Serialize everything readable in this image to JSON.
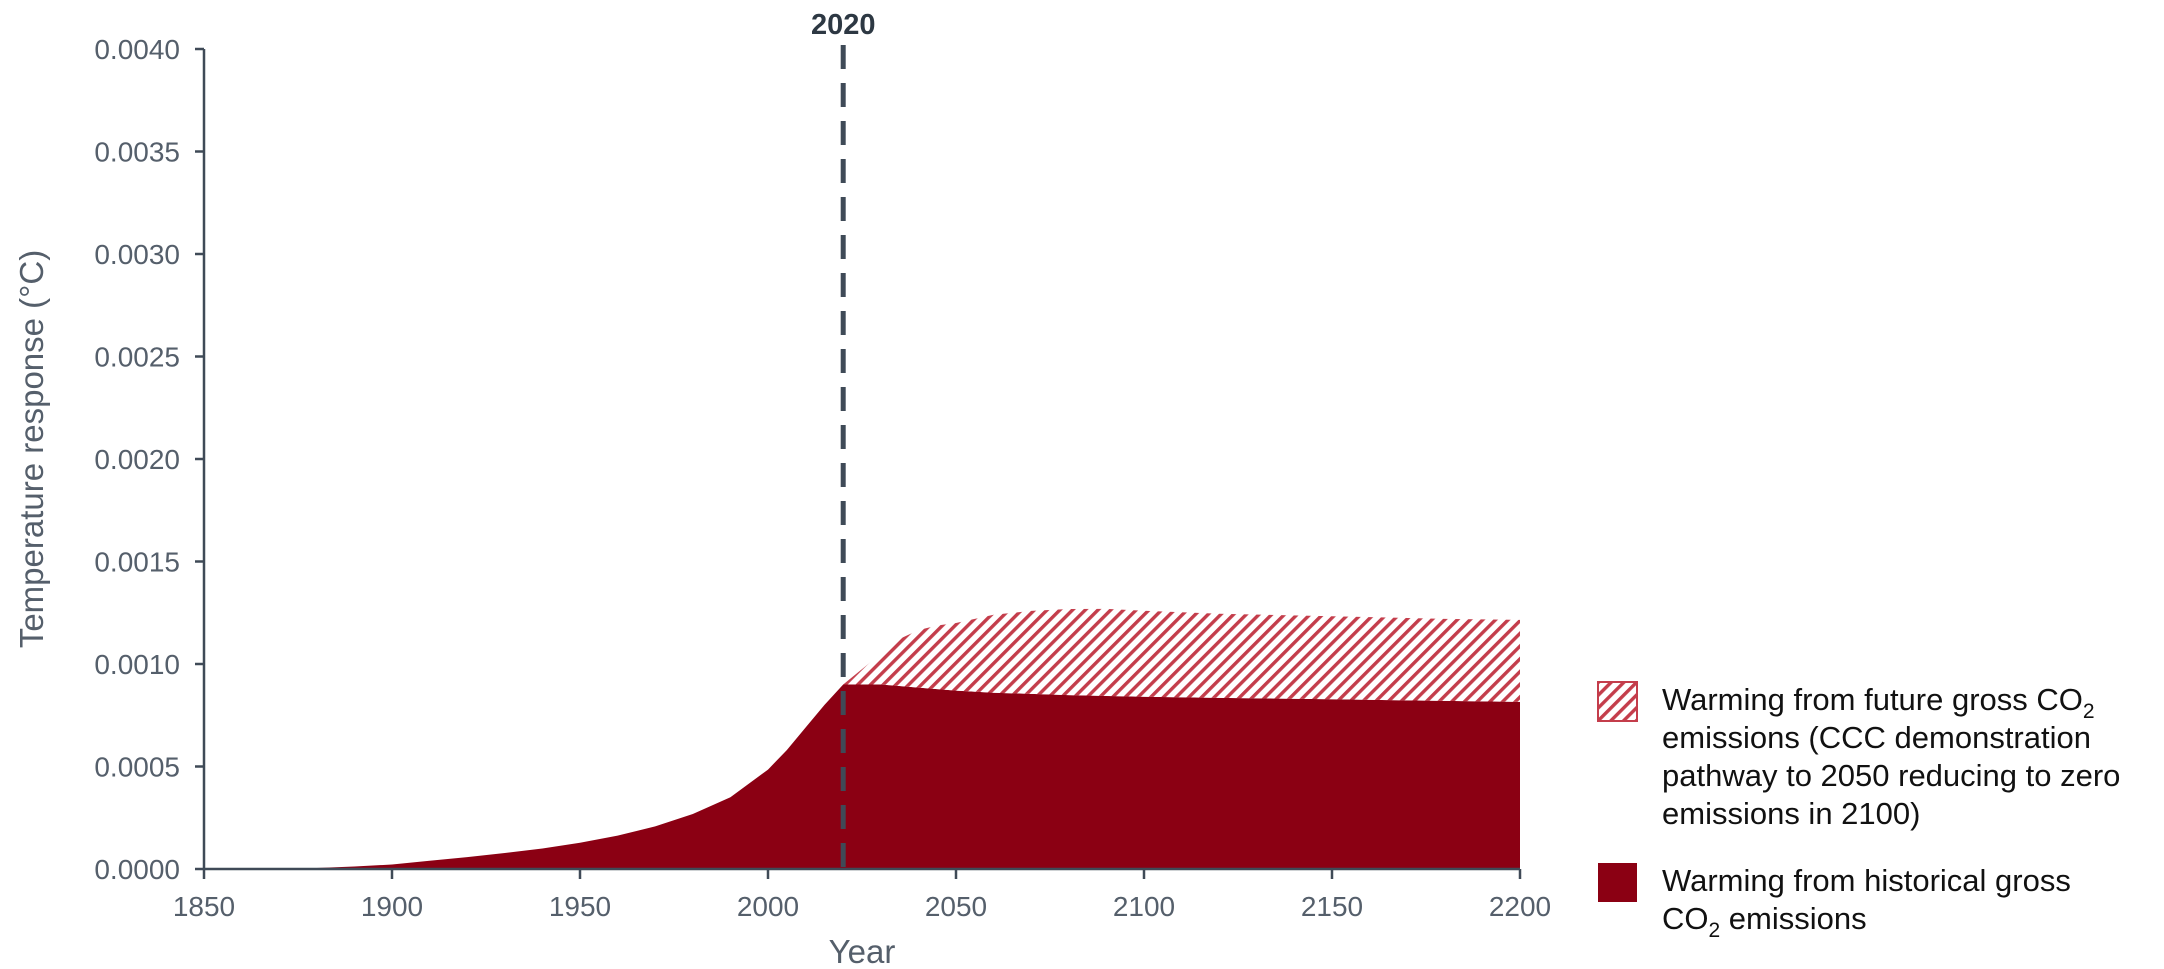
{
  "chart_data": {
    "type": "area",
    "xlabel": "Year",
    "ylabel": "Temperature response (°C)",
    "xlim": [
      1850,
      2200
    ],
    "ylim": [
      0,
      0.004
    ],
    "x_ticks": [
      1850,
      1900,
      1950,
      2000,
      2050,
      2100,
      2150,
      2200
    ],
    "y_ticks": [
      "0.0000",
      "0.0005",
      "0.0010",
      "0.0015",
      "0.0020",
      "0.0025",
      "0.0030",
      "0.0035",
      "0.0040"
    ],
    "y_tick_values": [
      0,
      0.0005,
      0.001,
      0.0015,
      0.002,
      0.0025,
      0.003,
      0.0035,
      0.004
    ],
    "stacked": true,
    "grid": false,
    "legend_position": "bottom-right",
    "marker": {
      "x": 2020,
      "label": "2020",
      "style": "dashed",
      "color": "#3f4a57"
    },
    "series": [
      {
        "legend_label_parts": [
          {
            "text": "Warming from historical gross CO",
            "sub": "2"
          },
          {
            "text": "emissions"
          }
        ],
        "legend_lines": [
          "Warming from historical gross",
          "CO₂ emissions"
        ],
        "fill": "solid",
        "color": "#8b0013",
        "x": [
          1850,
          1870,
          1880,
          1890,
          1900,
          1910,
          1920,
          1930,
          1940,
          1950,
          1960,
          1970,
          1980,
          1990,
          2000,
          2005,
          2010,
          2015,
          2020,
          2030,
          2040,
          2050,
          2060,
          2080,
          2100,
          2120,
          2150,
          2180,
          2200
        ],
        "values": [
          0,
          0,
          5e-06,
          1.2e-05,
          2.2e-05,
          4e-05,
          5.8e-05,
          7.8e-05,
          0.0001,
          0.000128,
          0.000163,
          0.000208,
          0.000268,
          0.00035,
          0.000485,
          0.00058,
          0.00069,
          0.0008,
          0.0009,
          0.0009,
          0.000885,
          0.00087,
          0.00086,
          0.000848,
          0.00084,
          0.000835,
          0.000828,
          0.00082,
          0.000815
        ]
      },
      {
        "legend_label_parts": [
          {
            "text": "Warming from future gross CO",
            "sub": "2"
          },
          {
            "text": "emissions  (CCC demonstration"
          },
          {
            "text": "pathway to 2050 reducing to zero"
          },
          {
            "text": "emissions in 2100)"
          }
        ],
        "legend_lines": [
          "Warming from future gross CO₂",
          "emissions  (CCC demonstration",
          "pathway to 2050 reducing to zero",
          "emissions in 2100)"
        ],
        "fill": "hatched",
        "color": "#c43d4b",
        "x": [
          2020,
          2030,
          2035,
          2040,
          2045,
          2050,
          2060,
          2070,
          2080,
          2090,
          2100,
          2120,
          2150,
          2180,
          2200
        ],
        "values": [
          0,
          0.00015,
          0.00023,
          0.00028,
          0.00031,
          0.00033,
          0.00038,
          0.000405,
          0.00042,
          0.000425,
          0.00042,
          0.00041,
          0.000405,
          0.0004,
          0.0004
        ]
      }
    ]
  }
}
